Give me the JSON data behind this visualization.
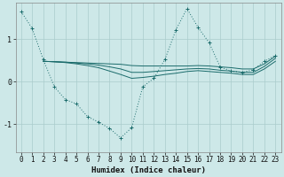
{
  "xlabel": "Humidex (Indice chaleur)",
  "bg_color": "#cde8e8",
  "grid_color": "#aacccc",
  "line_color": "#1a6b6b",
  "xlim": [
    -0.5,
    23.5
  ],
  "ylim": [
    -1.65,
    1.85
  ],
  "yticks": [
    -1,
    0,
    1
  ],
  "xticks": [
    0,
    1,
    2,
    3,
    4,
    5,
    6,
    7,
    8,
    9,
    10,
    11,
    12,
    13,
    14,
    15,
    16,
    17,
    18,
    19,
    20,
    21,
    22,
    23
  ],
  "line1_x": [
    0,
    1,
    2,
    3,
    4,
    5,
    6,
    7,
    8,
    9,
    10,
    11,
    12,
    13,
    14,
    15,
    16,
    17,
    18,
    19,
    20,
    21,
    22,
    23
  ],
  "line1_y": [
    1.65,
    1.25,
    0.52,
    -0.12,
    -0.42,
    -0.52,
    -0.82,
    -0.95,
    -1.1,
    -1.32,
    -1.08,
    -0.12,
    0.08,
    0.52,
    1.22,
    1.72,
    1.28,
    0.92,
    0.35,
    0.25,
    0.22,
    0.28,
    0.48,
    0.62
  ],
  "line2_x": [
    2,
    3,
    4,
    5,
    6,
    7,
    8,
    9,
    10,
    11,
    12,
    13,
    14,
    15,
    16,
    17,
    18,
    19,
    20,
    21,
    22,
    23
  ],
  "line2_y": [
    0.48,
    0.47,
    0.46,
    0.45,
    0.44,
    0.43,
    0.42,
    0.41,
    0.38,
    0.37,
    0.37,
    0.37,
    0.37,
    0.37,
    0.38,
    0.37,
    0.35,
    0.33,
    0.3,
    0.3,
    0.42,
    0.6
  ],
  "line3_x": [
    2,
    3,
    4,
    5,
    6,
    7,
    8,
    9,
    10,
    11,
    12,
    13,
    14,
    15,
    16,
    17,
    18,
    19,
    20,
    21,
    22,
    23
  ],
  "line3_y": [
    0.48,
    0.47,
    0.46,
    0.44,
    0.42,
    0.39,
    0.35,
    0.3,
    0.22,
    0.22,
    0.24,
    0.26,
    0.28,
    0.3,
    0.31,
    0.3,
    0.27,
    0.25,
    0.22,
    0.22,
    0.36,
    0.55
  ],
  "line4_x": [
    2,
    3,
    4,
    5,
    6,
    7,
    8,
    9,
    10,
    11,
    12,
    13,
    14,
    15,
    16,
    17,
    18,
    19,
    20,
    21,
    22,
    23
  ],
  "line4_y": [
    0.48,
    0.47,
    0.45,
    0.42,
    0.38,
    0.33,
    0.25,
    0.17,
    0.08,
    0.1,
    0.13,
    0.17,
    0.2,
    0.24,
    0.26,
    0.24,
    0.22,
    0.2,
    0.17,
    0.17,
    0.3,
    0.48
  ]
}
